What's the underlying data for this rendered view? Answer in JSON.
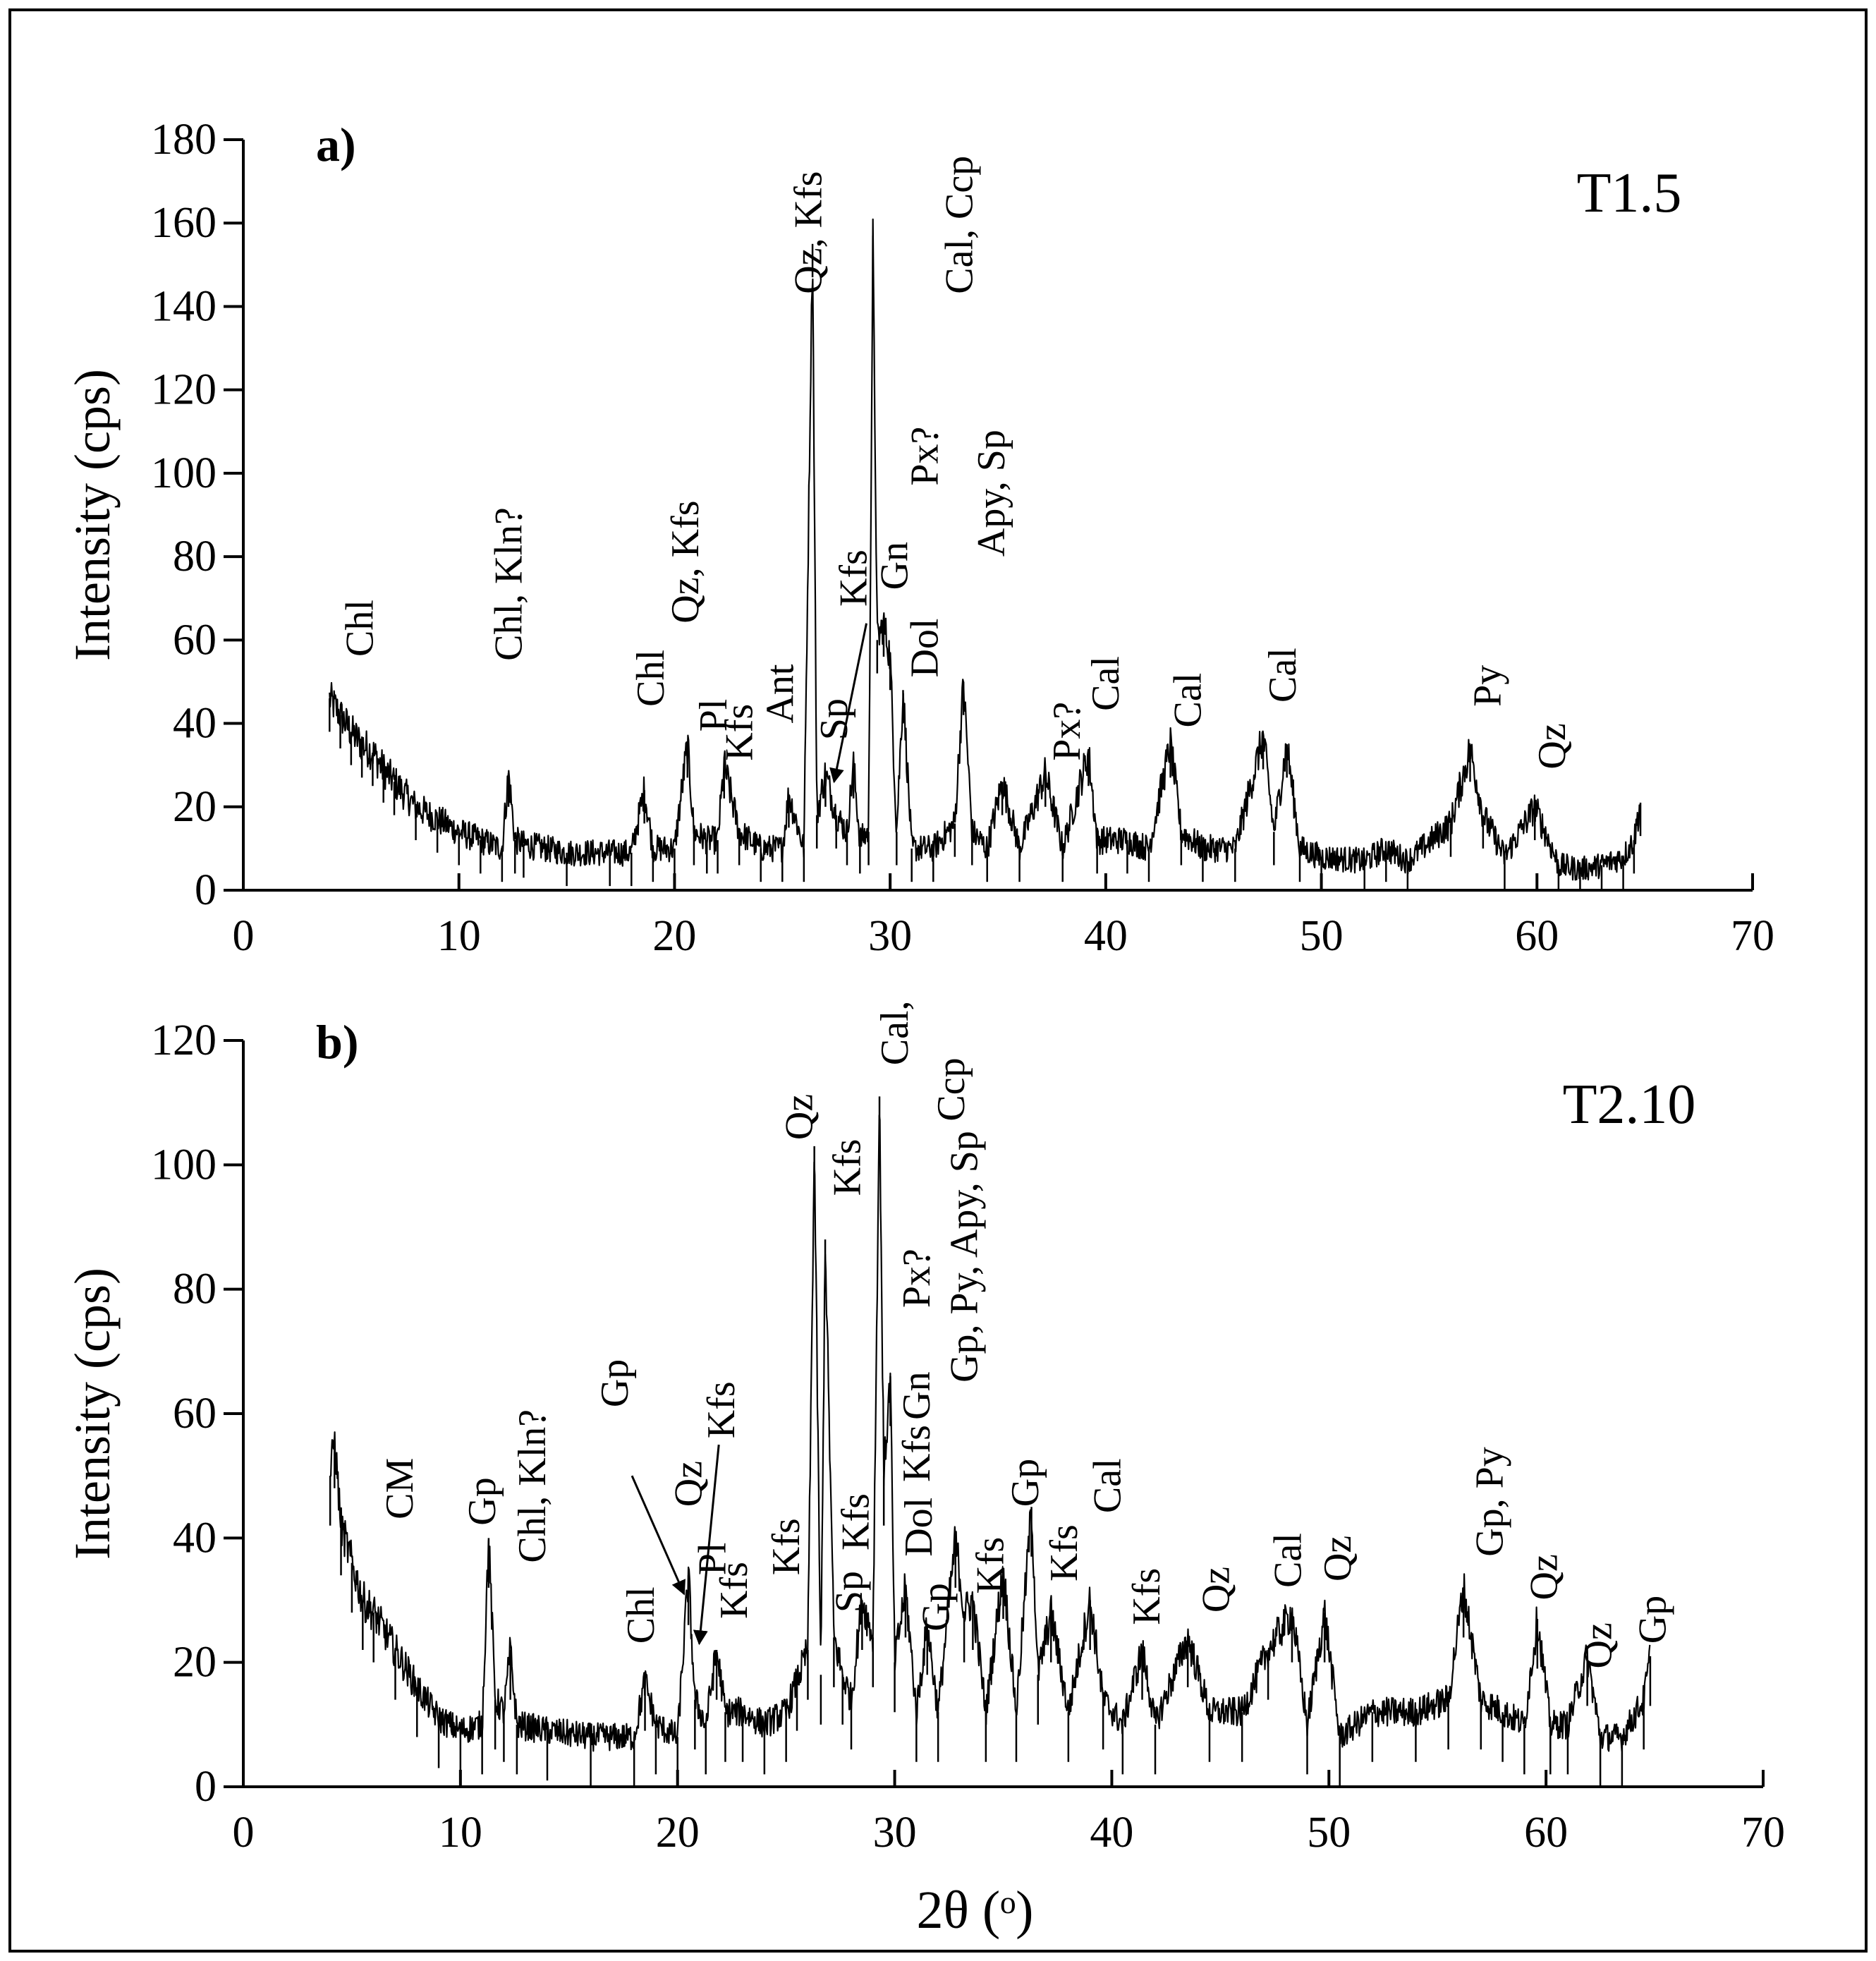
{
  "chart_data": [
    {
      "type": "line",
      "panel": "a)",
      "sample": "T1.5",
      "xlabel": "",
      "ylabel": "Intensity (cps)",
      "xlim": [
        0,
        70
      ],
      "ylim": [
        0,
        180
      ],
      "xticks": [
        0,
        10,
        20,
        30,
        40,
        50,
        60,
        70
      ],
      "yticks": [
        0,
        20,
        40,
        60,
        80,
        100,
        120,
        140,
        160,
        180
      ],
      "series": [
        {
          "name": "T1.5",
          "x": [
            4.0,
            4.5,
            5.0,
            5.5,
            6.0,
            6.5,
            7.0,
            8.0,
            9.0,
            10.0,
            11.0,
            12.0,
            12.3,
            12.6,
            13.0,
            15.0,
            17.0,
            18.0,
            18.6,
            19.0,
            20.0,
            20.6,
            20.9,
            21.5,
            22.0,
            22.3,
            23.0,
            24.0,
            25.0,
            25.3,
            26.0,
            26.4,
            26.6,
            27.0,
            27.5,
            28.0,
            28.3,
            28.6,
            29.0,
            29.2,
            29.4,
            29.7,
            30.0,
            30.3,
            30.6,
            31.0,
            32.0,
            33.0,
            33.4,
            33.8,
            34.5,
            35.2,
            36.0,
            37.2,
            38.0,
            39.2,
            39.6,
            41.0,
            42.0,
            43.0,
            43.5,
            44.5,
            46.0,
            47.3,
            47.8,
            48.4,
            49.0,
            50.0,
            52.0,
            53.0,
            54.0,
            56.0,
            56.9,
            57.5,
            58.5,
            59.9,
            61.0,
            62.0,
            63.0,
            64.0,
            64.5,
            64.8
          ],
          "y": [
            46,
            42,
            38,
            35,
            33,
            29,
            26,
            20,
            17,
            14,
            12,
            10,
            28,
            12,
            11,
            9,
            9,
            9,
            24,
            10,
            10,
            35,
            14,
            12,
            12,
            30,
            14,
            10,
            10,
            23,
            10,
            155,
            18,
            28,
            18,
            14,
            30,
            12,
            14,
            157,
            60,
            64,
            56,
            14,
            48,
            10,
            10,
            16,
            50,
            14,
            10,
            26,
            10,
            28,
            10,
            33,
            12,
            12,
            10,
            35,
            14,
            10,
            10,
            37,
            14,
            35,
            10,
            8,
            7,
            10,
            7,
            16,
            34,
            18,
            8,
            20,
            6,
            5,
            6,
            8,
            12,
            21
          ]
        }
      ],
      "annotations": [
        {
          "text": "Chl",
          "x": 6.0,
          "y": 56
        },
        {
          "text": "Chl, Kln?",
          "x": 12.9,
          "y": 55
        },
        {
          "text": "Chl",
          "x": 19.5,
          "y": 44
        },
        {
          "text": "Qz, Kfs",
          "x": 21.1,
          "y": 64
        },
        {
          "text": "Pl",
          "x": 22.4,
          "y": 38
        },
        {
          "text": "Kfs",
          "x": 23.6,
          "y": 31
        },
        {
          "text": "Ant",
          "x": 25.5,
          "y": 40
        },
        {
          "text": "Qz, Kfs",
          "x": 26.8,
          "y": 143
        },
        {
          "text": "Kfs",
          "x": 28.9,
          "y": 68
        },
        {
          "text": "Sp",
          "x": 28.0,
          "y": 36
        },
        {
          "text": "Gn",
          "x": 30.8,
          "y": 72
        },
        {
          "text": "Px?",
          "x": 32.2,
          "y": 97
        },
        {
          "text": "Dol",
          "x": 32.2,
          "y": 51
        },
        {
          "text": "Cal, Ccp",
          "x": 33.8,
          "y": 143
        },
        {
          "text": "Apy, Sp",
          "x": 35.3,
          "y": 80
        },
        {
          "text": "Px?",
          "x": 38.8,
          "y": 31
        },
        {
          "text": "Cal",
          "x": 40.6,
          "y": 43
        },
        {
          "text": "Cal",
          "x": 44.4,
          "y": 39
        },
        {
          "text": "Cal",
          "x": 48.8,
          "y": 45
        },
        {
          "text": "Py",
          "x": 58.3,
          "y": 44
        },
        {
          "text": "Qz",
          "x": 61.3,
          "y": 29
        }
      ],
      "arrows": [
        {
          "from_x": 28.9,
          "to_x": 27.4
        }
      ]
    },
    {
      "type": "line",
      "panel": "b)",
      "sample": "T2.10",
      "xlabel": "2θ  (ᵒ)",
      "ylabel": "Intensity (cps)",
      "xlim": [
        0,
        70
      ],
      "ylim": [
        0,
        120
      ],
      "xticks": [
        0,
        10,
        20,
        30,
        40,
        50,
        60,
        70
      ],
      "yticks": [
        0,
        20,
        40,
        60,
        80,
        100,
        120
      ],
      "series": [
        {
          "name": "T2.10",
          "x": [
            4.0,
            4.2,
            4.5,
            5.0,
            5.5,
            6.0,
            7.0,
            8.0,
            9.0,
            10.0,
            11.0,
            11.3,
            11.6,
            12.0,
            12.3,
            12.6,
            14.0,
            16.0,
            18.0,
            18.5,
            19.0,
            20.0,
            20.5,
            20.8,
            21.3,
            21.8,
            22.2,
            23.0,
            24.0,
            25.0,
            25.5,
            26.0,
            26.3,
            26.6,
            26.8,
            27.2,
            27.6,
            28.0,
            28.5,
            29.0,
            29.3,
            29.5,
            29.8,
            30.0,
            30.5,
            31.0,
            31.5,
            32.0,
            32.8,
            33.2,
            33.6,
            34.2,
            35.0,
            35.6,
            36.3,
            36.6,
            37.2,
            38.0,
            39.0,
            39.6,
            40.5,
            41.4,
            42.0,
            43.5,
            44.5,
            46.0,
            47.2,
            48.3,
            49.0,
            49.8,
            50.5,
            52.0,
            54.0,
            55.5,
            56.2,
            57.0,
            58.0,
            59.0,
            59.6,
            60.2,
            61.0,
            61.9,
            62.5,
            63.5,
            64.5,
            64.8
          ],
          "y": [
            50,
            56,
            42,
            36,
            30,
            28,
            22,
            16,
            11,
            9,
            10,
            40,
            14,
            12,
            22,
            10,
            9,
            8,
            8,
            17,
            10,
            8,
            34,
            14,
            10,
            22,
            12,
            12,
            10,
            12,
            17,
            22,
            103,
            18,
            88,
            24,
            18,
            14,
            30,
            24,
            111,
            50,
            66,
            20,
            32,
            12,
            26,
            12,
            40,
            28,
            30,
            12,
            35,
            12,
            45,
            18,
            28,
            12,
            30,
            14,
            10,
            22,
            10,
            24,
            12,
            12,
            22,
            28,
            10,
            28,
            8,
            12,
            12,
            14,
            32,
            14,
            12,
            10,
            27,
            10,
            10,
            21,
            8,
            8,
            14,
            21
          ]
        }
      ],
      "annotations": [
        {
          "text": "CM",
          "x": 7.8,
          "y": 43
        },
        {
          "text": "Gp",
          "x": 11.6,
          "y": 42
        },
        {
          "text": "Chl, Kln?",
          "x": 13.9,
          "y": 36
        },
        {
          "text": "Gp",
          "x": 17.7,
          "y": 61
        },
        {
          "text": "Chl",
          "x": 18.9,
          "y": 23
        },
        {
          "text": "Qz",
          "x": 21.1,
          "y": 45
        },
        {
          "text": "Kfs",
          "x": 22.6,
          "y": 56
        },
        {
          "text": "Pl",
          "x": 22.2,
          "y": 34
        },
        {
          "text": "Kfs",
          "x": 23.2,
          "y": 27
        },
        {
          "text": "Kfs",
          "x": 25.6,
          "y": 34
        },
        {
          "text": "Qz",
          "x": 26.2,
          "y": 104
        },
        {
          "text": "Kfs",
          "x": 28.4,
          "y": 95
        },
        {
          "text": "Sp",
          "x": 28.5,
          "y": 28
        },
        {
          "text": "Kfs",
          "x": 28.8,
          "y": 38
        },
        {
          "text": "Cal,",
          "x": 30.6,
          "y": 116
        },
        {
          "text": "Ccp",
          "x": 33.2,
          "y": 107
        },
        {
          "text": "Px?",
          "x": 31.6,
          "y": 77
        },
        {
          "text": "Gn",
          "x": 31.6,
          "y": 59
        },
        {
          "text": "Kfs",
          "x": 31.6,
          "y": 49
        },
        {
          "text": "Gp, Py, Apy, Sp",
          "x": 33.8,
          "y": 65
        },
        {
          "text": "Dol",
          "x": 31.7,
          "y": 37
        },
        {
          "text": "Gp",
          "x": 32.5,
          "y": 25
        },
        {
          "text": "Gp",
          "x": 36.6,
          "y": 45
        },
        {
          "text": "Kfs",
          "x": 35.0,
          "y": 31
        },
        {
          "text": "Kfs",
          "x": 38.4,
          "y": 33
        },
        {
          "text": "Cal",
          "x": 40.4,
          "y": 44
        },
        {
          "text": "Kfs",
          "x": 42.2,
          "y": 26
        },
        {
          "text": "Qz",
          "x": 45.4,
          "y": 28
        },
        {
          "text": "Cal",
          "x": 48.7,
          "y": 32
        },
        {
          "text": "Qz",
          "x": 51.0,
          "y": 33
        },
        {
          "text": "Gp, Py",
          "x": 58.0,
          "y": 37
        },
        {
          "text": "Qz",
          "x": 60.5,
          "y": 30
        },
        {
          "text": "Qz",
          "x": 63.0,
          "y": 19
        },
        {
          "text": "Gp",
          "x": 65.5,
          "y": 23
        }
      ],
      "arrows": [
        {
          "from_x": 17.9,
          "to_x": 20.3
        },
        {
          "from_x": 21.9,
          "to_x": 21.0
        }
      ]
    }
  ]
}
